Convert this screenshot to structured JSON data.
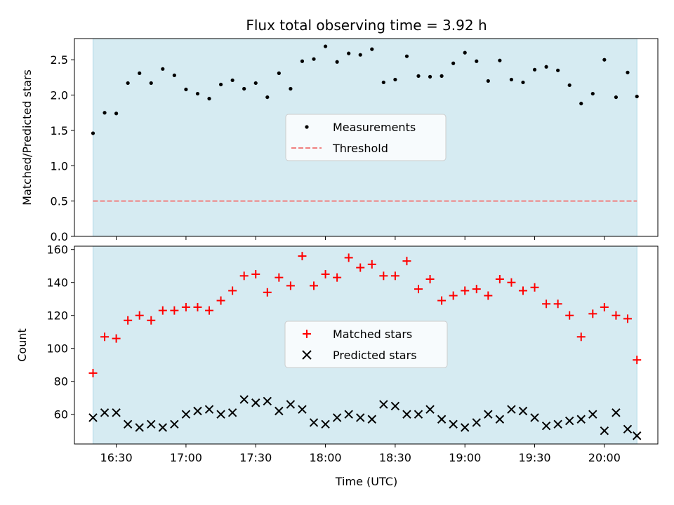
{
  "title": "Flux total observing time = 3.92 h",
  "colors": {
    "shade": "#add8e6",
    "threshold": "#f08080",
    "matched": "#ff0000",
    "predicted": "#000000",
    "measurement": "#000000"
  },
  "chart_data": [
    {
      "type": "scatter",
      "panel": "top",
      "title": "Flux total observing time = 3.92 h",
      "xlabel": "",
      "ylabel": "Matched/Predicted stars",
      "xlim": [
        "16:12",
        "20:23"
      ],
      "ylim": [
        0.0,
        2.8
      ],
      "yticks": [
        "0.0",
        "0.5",
        "1.0",
        "1.5",
        "2.0",
        "2.5"
      ],
      "shaded_interval": [
        "16:20",
        "20:14"
      ],
      "legend_position": "center",
      "series": [
        {
          "name": "Measurements",
          "marker": "dot",
          "x": [
            "16:20",
            "16:25",
            "16:30",
            "16:35",
            "16:40",
            "16:45",
            "16:50",
            "16:55",
            "17:00",
            "17:05",
            "17:10",
            "17:15",
            "17:20",
            "17:25",
            "17:30",
            "17:35",
            "17:40",
            "17:45",
            "17:50",
            "17:55",
            "18:00",
            "18:05",
            "18:10",
            "18:15",
            "18:20",
            "18:25",
            "18:30",
            "18:35",
            "18:40",
            "18:45",
            "18:50",
            "18:55",
            "19:00",
            "19:05",
            "19:10",
            "19:15",
            "19:20",
            "19:25",
            "19:30",
            "19:35",
            "19:40",
            "19:45",
            "19:50",
            "19:55",
            "20:00",
            "20:05",
            "20:10",
            "20:14"
          ],
          "y": [
            1.46,
            1.75,
            1.74,
            2.17,
            2.31,
            2.17,
            2.37,
            2.28,
            2.08,
            2.02,
            1.95,
            2.15,
            2.21,
            2.09,
            2.17,
            1.97,
            2.31,
            2.09,
            2.48,
            2.51,
            2.69,
            2.47,
            2.59,
            2.57,
            2.65,
            2.18,
            2.22,
            2.55,
            2.27,
            2.26,
            2.27,
            2.45,
            2.6,
            2.48,
            2.2,
            2.49,
            2.22,
            2.18,
            2.36,
            2.4,
            2.35,
            2.14,
            1.88,
            2.02,
            2.5,
            1.97,
            2.32,
            1.98
          ]
        },
        {
          "name": "Threshold",
          "type": "line",
          "style": "dashed",
          "y": 0.5
        }
      ]
    },
    {
      "type": "scatter",
      "panel": "bottom",
      "xlabel": "Time (UTC)",
      "ylabel": "Count",
      "xlim": [
        "16:12",
        "20:23"
      ],
      "ylim": [
        42,
        162
      ],
      "yticks": [
        "60",
        "80",
        "100",
        "120",
        "140",
        "160"
      ],
      "xticks": [
        "16:30",
        "17:00",
        "17:30",
        "18:00",
        "18:30",
        "19:00",
        "19:30",
        "20:00"
      ],
      "shaded_interval": [
        "16:20",
        "20:14"
      ],
      "legend_position": "center",
      "series": [
        {
          "name": "Matched stars",
          "marker": "plus",
          "x": [
            "16:20",
            "16:25",
            "16:30",
            "16:35",
            "16:40",
            "16:45",
            "16:50",
            "16:55",
            "17:00",
            "17:05",
            "17:10",
            "17:15",
            "17:20",
            "17:25",
            "17:30",
            "17:35",
            "17:40",
            "17:45",
            "17:50",
            "17:55",
            "18:00",
            "18:05",
            "18:10",
            "18:15",
            "18:20",
            "18:25",
            "18:30",
            "18:35",
            "18:40",
            "18:45",
            "18:50",
            "18:55",
            "19:00",
            "19:05",
            "19:10",
            "19:15",
            "19:20",
            "19:25",
            "19:30",
            "19:35",
            "19:40",
            "19:45",
            "19:50",
            "19:55",
            "20:00",
            "20:05",
            "20:10",
            "20:14"
          ],
          "y": [
            85,
            107,
            106,
            117,
            120,
            117,
            123,
            123,
            125,
            125,
            123,
            129,
            135,
            144,
            145,
            134,
            143,
            138,
            156,
            138,
            145,
            143,
            155,
            149,
            151,
            144,
            144,
            153,
            136,
            142,
            129,
            132,
            135,
            136,
            132,
            142,
            140,
            135,
            137,
            127,
            127,
            120,
            107,
            121,
            125,
            120,
            118,
            93
          ]
        },
        {
          "name": "Predicted stars",
          "marker": "x",
          "x": [
            "16:20",
            "16:25",
            "16:30",
            "16:35",
            "16:40",
            "16:45",
            "16:50",
            "16:55",
            "17:00",
            "17:05",
            "17:10",
            "17:15",
            "17:20",
            "17:25",
            "17:30",
            "17:35",
            "17:40",
            "17:45",
            "17:50",
            "17:55",
            "18:00",
            "18:05",
            "18:10",
            "18:15",
            "18:20",
            "18:25",
            "18:30",
            "18:35",
            "18:40",
            "18:45",
            "18:50",
            "18:55",
            "19:00",
            "19:05",
            "19:10",
            "19:15",
            "19:20",
            "19:25",
            "19:30",
            "19:35",
            "19:40",
            "19:45",
            "19:50",
            "19:55",
            "20:00",
            "20:05",
            "20:10",
            "20:14"
          ],
          "y": [
            58,
            61,
            61,
            54,
            52,
            54,
            52,
            54,
            60,
            62,
            63,
            60,
            61,
            69,
            67,
            68,
            62,
            66,
            63,
            55,
            54,
            58,
            60,
            58,
            57,
            66,
            65,
            60,
            60,
            63,
            57,
            54,
            52,
            55,
            60,
            57,
            63,
            62,
            58,
            53,
            54,
            56,
            57,
            60,
            50,
            61,
            51,
            47
          ]
        }
      ]
    }
  ]
}
